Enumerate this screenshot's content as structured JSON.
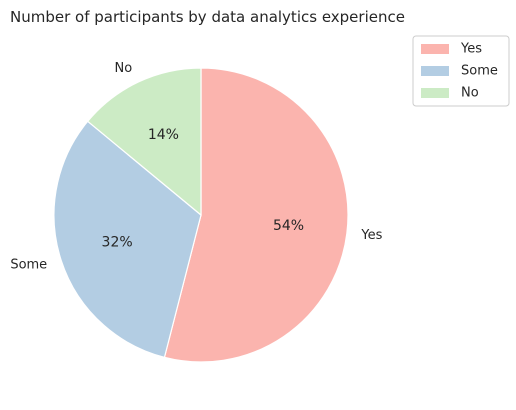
{
  "chart_data": {
    "type": "pie",
    "title": "Number of participants by data analytics experience",
    "categories": [
      "Yes",
      "Some",
      "No"
    ],
    "values": [
      54,
      32,
      14
    ],
    "value_labels": [
      "54%",
      "32%",
      "14%"
    ],
    "colors": [
      "#fbb4ae",
      "#b3cde3",
      "#ccebc5"
    ],
    "start_angle_deg": 90,
    "direction": "clockwise",
    "legend": {
      "position": "upper-right-outside",
      "entries": [
        "Yes",
        "Some",
        "No"
      ]
    }
  }
}
